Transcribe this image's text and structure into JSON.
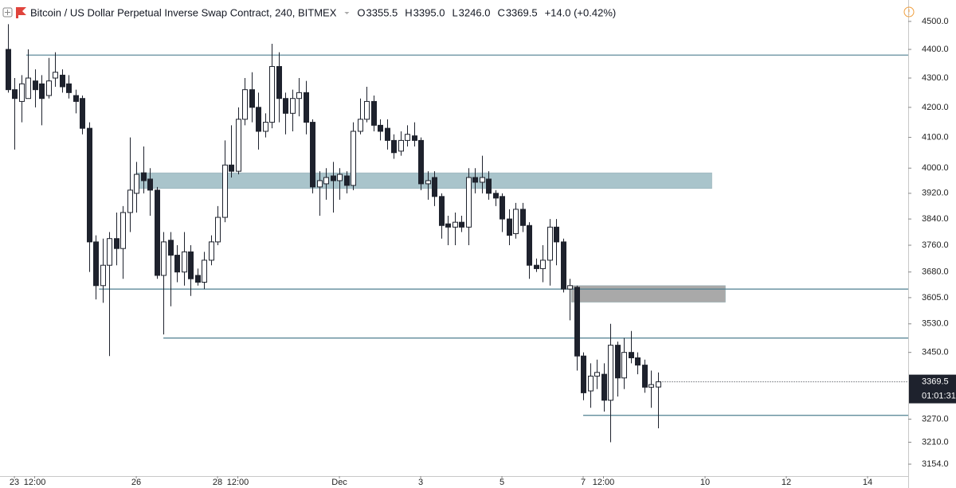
{
  "chart_data": {
    "type": "candlestick",
    "title": "Bitcoin / US Dollar Perpetual Inverse Swap Contract, 240, BITMEX",
    "header_stats": [
      {
        "key": "O",
        "value": "3355.5"
      },
      {
        "key": "H",
        "value": "3395.0"
      },
      {
        "key": "L",
        "value": "3246.0"
      },
      {
        "key": "C",
        "value": "3369.5"
      }
    ],
    "change": "+14.0 (+0.42%)",
    "x": [
      -4,
      0,
      4,
      8,
      12,
      16,
      20,
      24,
      28,
      32,
      36,
      40,
      44,
      48,
      52,
      56,
      60,
      64,
      68,
      72,
      76,
      80,
      84,
      88,
      92,
      96,
      100,
      104,
      108,
      112,
      116,
      120,
      124,
      128,
      132,
      136,
      140,
      144,
      148,
      152,
      156,
      160,
      164,
      168,
      172,
      176,
      180,
      184,
      188,
      192,
      196,
      200,
      204,
      208,
      212,
      216,
      220,
      224,
      228,
      232,
      236,
      240,
      244,
      248,
      252,
      256,
      260,
      264,
      268,
      272,
      276,
      280,
      284,
      288,
      292,
      296,
      300,
      304,
      308,
      312,
      316,
      320,
      324,
      328,
      332,
      336,
      340,
      344,
      348,
      352,
      356,
      360,
      364,
      368,
      372,
      376,
      380
    ],
    "open": [
      4400,
      4260,
      4220,
      4230,
      4290,
      4280,
      4240,
      4300,
      4310,
      4280,
      4240,
      4230,
      4130,
      3770,
      3640,
      3700,
      3780,
      3750,
      3860,
      3920,
      3985,
      3965,
      3930,
      3670,
      3775,
      3730,
      3680,
      3740,
      3670,
      3650,
      3715,
      3770,
      3845,
      4010,
      3990,
      4160,
      4260,
      4200,
      4120,
      4150,
      4340,
      4230,
      4180,
      4230,
      4250,
      4150,
      3940,
      3950,
      3975,
      3960,
      3975,
      3945,
      4120,
      4160,
      4220,
      4140,
      4130,
      4090,
      4055,
      4090,
      4105,
      4090,
      3950,
      3970,
      3910,
      3825,
      3815,
      3830,
      3815,
      3970,
      3955,
      3965,
      3920,
      3910,
      3840,
      3795,
      3870,
      3820,
      3700,
      3690,
      3715,
      3815,
      3770,
      3630,
      3635,
      3440,
      3345,
      3385,
      3390,
      3320,
      3470,
      3380,
      3450,
      3435,
      3415,
      3355,
      3355.5
    ],
    "high": [
      4490,
      4300,
      4310,
      4400,
      4330,
      4310,
      4370,
      4390,
      4330,
      4310,
      4260,
      4240,
      4150,
      3790,
      3780,
      3800,
      3860,
      3880,
      4100,
      4020,
      4070,
      4000,
      3940,
      3800,
      3800,
      3760,
      3800,
      3760,
      3690,
      3740,
      3790,
      3880,
      4090,
      4140,
      4200,
      4300,
      4320,
      4250,
      4180,
      4420,
      4390,
      4250,
      4260,
      4300,
      4290,
      4160,
      3990,
      4000,
      4020,
      4000,
      3990,
      4150,
      4230,
      4270,
      4240,
      4160,
      4160,
      4110,
      4120,
      4140,
      4150,
      4100,
      3990,
      3990,
      3920,
      3850,
      3860,
      3850,
      4000,
      4000,
      4040,
      3990,
      3930,
      3920,
      3870,
      3890,
      3890,
      3830,
      3720,
      3760,
      3840,
      3840,
      3780,
      3660,
      3640,
      3450,
      3420,
      3430,
      3420,
      3530,
      3480,
      3490,
      3510,
      3450,
      3430,
      3400,
      3395
    ],
    "low": [
      4250,
      4060,
      4150,
      4230,
      4200,
      4140,
      4230,
      4270,
      4250,
      4230,
      4180,
      4110,
      3680,
      3600,
      3590,
      3440,
      3700,
      3660,
      3800,
      3860,
      3920,
      3850,
      3660,
      3500,
      3580,
      3650,
      3640,
      3610,
      3640,
      3630,
      3700,
      3760,
      3830,
      3970,
      3980,
      4140,
      4150,
      4060,
      4100,
      4130,
      4150,
      4110,
      4120,
      4170,
      4110,
      3920,
      3850,
      3900,
      3860,
      3900,
      3920,
      3930,
      4110,
      4150,
      4120,
      4090,
      4060,
      4030,
      4040,
      4070,
      4070,
      3930,
      3900,
      3880,
      3780,
      3760,
      3760,
      3800,
      3760,
      3920,
      3920,
      3900,
      3880,
      3800,
      3760,
      3780,
      3800,
      3660,
      3680,
      3650,
      3640,
      3700,
      3620,
      3540,
      3400,
      3320,
      3300,
      3350,
      3290,
      3210,
      3330,
      3350,
      3420,
      3390,
      3340,
      3300,
      3246
    ],
    "close": [
      4260,
      4230,
      4280,
      4300,
      4260,
      4230,
      4290,
      4320,
      4270,
      4250,
      4220,
      4130,
      3770,
      3640,
      3700,
      3780,
      3750,
      3860,
      3930,
      3980,
      3960,
      3930,
      3670,
      3770,
      3730,
      3680,
      3740,
      3660,
      3650,
      3715,
      3770,
      3845,
      4010,
      3990,
      4160,
      4260,
      4200,
      4120,
      4150,
      4340,
      4230,
      4180,
      4230,
      4250,
      4150,
      3940,
      3960,
      3970,
      3960,
      3980,
      3945,
      4120,
      4160,
      4220,
      4140,
      4120,
      4090,
      4050,
      4090,
      4110,
      4090,
      3950,
      3960,
      3910,
      3820,
      3815,
      3830,
      3815,
      3970,
      3955,
      3970,
      3920,
      3905,
      3840,
      3790,
      3870,
      3820,
      3700,
      3690,
      3715,
      3815,
      3770,
      3630,
      3640,
      3440,
      3340,
      3385,
      3395,
      3320,
      3470,
      3380,
      3450,
      3435,
      3415,
      3355,
      3362,
      3369.5
    ],
    "up_color": "#ffffff",
    "down_color": "#1e222d",
    "outline_color": "#1e222d",
    "log_scale": true,
    "ylim": [
      3124,
      4578
    ],
    "yticks": [
      {
        "value": 4500,
        "label": "4500.0"
      },
      {
        "value": 4400,
        "label": "4400.0"
      },
      {
        "value": 4300,
        "label": "4300.0"
      },
      {
        "value": 4200,
        "label": "4200.0"
      },
      {
        "value": 4100,
        "label": "4100.0"
      },
      {
        "value": 4000,
        "label": "4000.0"
      },
      {
        "value": 3920,
        "label": "3920.0"
      },
      {
        "value": 3840,
        "label": "3840.0"
      },
      {
        "value": 3760,
        "label": "3760.0"
      },
      {
        "value": 3680,
        "label": "3680.0"
      },
      {
        "value": 3605,
        "label": "3605.0"
      },
      {
        "value": 3530,
        "label": "3530.0"
      },
      {
        "value": 3450,
        "label": "3450.0"
      },
      {
        "value": 3270,
        "label": "3270.0"
      },
      {
        "value": 3210,
        "label": "3210.0"
      },
      {
        "value": 3154,
        "label": "3154.0"
      }
    ],
    "xlim": [
      -8.5,
      528
    ],
    "xticks": [
      {
        "value": 0,
        "label": "23"
      },
      {
        "value": 12,
        "label": "12:00"
      },
      {
        "value": 72,
        "label": "26"
      },
      {
        "value": 120,
        "label": "28"
      },
      {
        "value": 132,
        "label": "12:00"
      },
      {
        "value": 192,
        "label": "Dec"
      },
      {
        "value": 240,
        "label": "3"
      },
      {
        "value": 288,
        "label": "5"
      },
      {
        "value": 336,
        "label": "7"
      },
      {
        "value": 348,
        "label": "12:00"
      },
      {
        "value": 408,
        "label": "10"
      },
      {
        "value": 456,
        "label": "12"
      },
      {
        "value": 504,
        "label": "14"
      }
    ],
    "levels": [
      {
        "price": 4380,
        "start": 7
      },
      {
        "price": 3630,
        "start": 50
      },
      {
        "price": 3490,
        "start": 88
      },
      {
        "price": 3280,
        "start": 336
      }
    ],
    "level_color": "#4f7f90",
    "zones": [
      {
        "low": 3935,
        "high": 3985,
        "start": 72,
        "end": 412,
        "color": "#a9c4cb"
      },
      {
        "low": 3592,
        "high": 3640,
        "start": 329,
        "end": 420,
        "color": "#a9a9a9"
      }
    ],
    "last_price_label": "3369.5",
    "countdown": "01:01:31"
  }
}
